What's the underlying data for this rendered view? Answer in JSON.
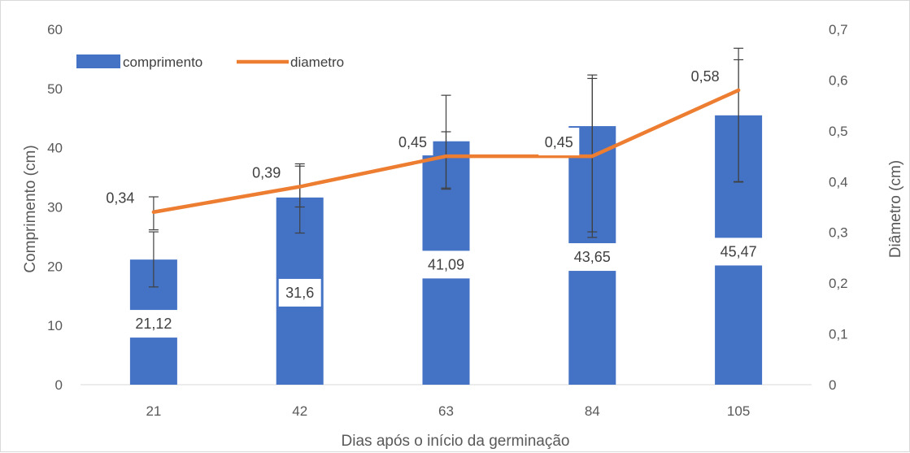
{
  "chart_data": {
    "type": "bar",
    "categories": [
      "21",
      "42",
      "63",
      "84",
      "105"
    ],
    "series": [
      {
        "name": "comprimento",
        "kind": "bar",
        "axis": "left",
        "color": "#4472C4",
        "values": [
          21.12,
          31.6,
          41.09,
          43.65,
          45.47
        ],
        "labels": [
          "21,12",
          "31,6",
          "41,09",
          "43,65",
          "45,47"
        ],
        "error_bars": [
          [
            16.5,
            25.8
          ],
          [
            25.6,
            36.9
          ],
          [
            33.2,
            42.7
          ],
          [
            25.8,
            51.7
          ],
          [
            34.2,
            56.8
          ]
        ]
      },
      {
        "name": "diametro",
        "kind": "line",
        "axis": "right",
        "color": "#ED7D31",
        "values": [
          0.34,
          0.39,
          0.45,
          0.45,
          0.58
        ],
        "labels": [
          "0,34",
          "0,39",
          "0,45",
          "0,45",
          "0,58"
        ],
        "error_bars": [
          [
            0.305,
            0.37
          ],
          [
            0.35,
            0.435
          ],
          [
            0.385,
            0.57
          ],
          [
            0.29,
            0.61
          ],
          [
            0.4,
            0.64
          ]
        ]
      }
    ],
    "xlabel": "Dias após o início da germinação",
    "ylabel": "Comprimento  (cm)",
    "y2label": "Diâmetro (cm)",
    "ylim": [
      0,
      60
    ],
    "y2lim": [
      0,
      0.7
    ],
    "yticks": [
      "0",
      "10",
      "20",
      "30",
      "40",
      "50",
      "60"
    ],
    "y2ticks": [
      "0",
      "0,1",
      "0,2",
      "0,3",
      "0,4",
      "0,5",
      "0,6",
      "0,7"
    ],
    "legend_position": "top-left",
    "grid": false
  }
}
